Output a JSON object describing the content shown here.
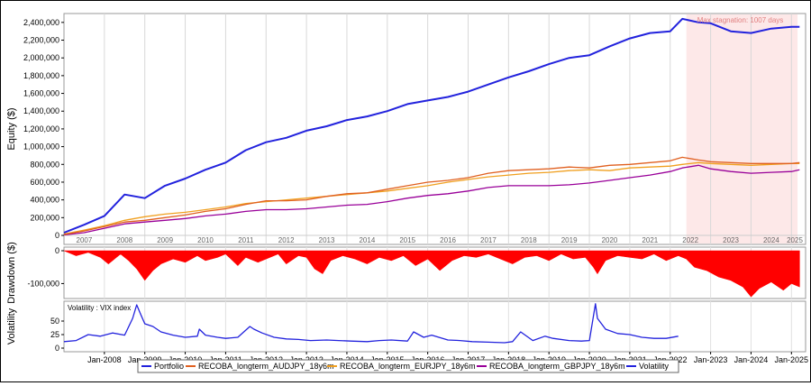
{
  "chart_data": [
    {
      "type": "line",
      "name": "equity",
      "ylabel": "Equity ($)",
      "ylim": [
        0,
        2500000
      ],
      "yticks": [
        "0",
        "200,000",
        "400,000",
        "600,000",
        "800,000",
        "1,000,000",
        "1,200,000",
        "1,400,000",
        "1,600,000",
        "1,800,000",
        "2,000,000",
        "2,200,000",
        "2,400,000"
      ],
      "year_labels": [
        "2007",
        "2008",
        "2009",
        "2010",
        "2011",
        "2012",
        "2013",
        "2014",
        "2015",
        "2016",
        "2017",
        "2018",
        "2019",
        "2020",
        "2021",
        "2022",
        "2023",
        "2024",
        "2025"
      ],
      "stagnation_label": "Max stagnation: 1007 days",
      "stagnation_range": [
        2022.4,
        2025.15
      ],
      "x": [
        2007.0,
        2007.5,
        2008.0,
        2008.5,
        2009.0,
        2009.5,
        2010.0,
        2010.5,
        2011.0,
        2011.5,
        2012.0,
        2012.5,
        2013.0,
        2013.5,
        2014.0,
        2014.5,
        2015.0,
        2015.5,
        2016.0,
        2016.5,
        2017.0,
        2017.5,
        2018.0,
        2018.5,
        2019.0,
        2019.5,
        2020.0,
        2020.5,
        2021.0,
        2021.5,
        2022.0,
        2022.3,
        2022.7,
        2023.0,
        2023.5,
        2024.0,
        2024.5,
        2025.0,
        2025.2
      ],
      "series": [
        {
          "name": "Portfolio",
          "color": "#2222dd",
          "values": [
            30000,
            120000,
            220000,
            460000,
            420000,
            560000,
            640000,
            740000,
            820000,
            960000,
            1050000,
            1100000,
            1180000,
            1230000,
            1300000,
            1340000,
            1400000,
            1480000,
            1520000,
            1560000,
            1620000,
            1700000,
            1780000,
            1850000,
            1930000,
            2000000,
            2030000,
            2130000,
            2220000,
            2280000,
            2300000,
            2440000,
            2400000,
            2390000,
            2300000,
            2280000,
            2330000,
            2350000,
            2350000
          ]
        },
        {
          "name": "RECOBA_longterm_AUDJPY_18y6m",
          "color": "#e06020",
          "values": [
            10000,
            50000,
            100000,
            150000,
            170000,
            200000,
            230000,
            270000,
            300000,
            350000,
            390000,
            390000,
            400000,
            440000,
            470000,
            480000,
            520000,
            560000,
            600000,
            620000,
            650000,
            700000,
            730000,
            740000,
            750000,
            770000,
            760000,
            790000,
            800000,
            820000,
            840000,
            880000,
            850000,
            830000,
            820000,
            810000,
            810000,
            810000,
            820000
          ]
        },
        {
          "name": "RECOBA_longterm_EURJPY_18y6m",
          "color": "#f0a020",
          "values": [
            15000,
            60000,
            110000,
            170000,
            210000,
            240000,
            260000,
            290000,
            320000,
            360000,
            380000,
            400000,
            420000,
            440000,
            460000,
            480000,
            500000,
            530000,
            560000,
            600000,
            630000,
            660000,
            680000,
            700000,
            710000,
            730000,
            740000,
            730000,
            760000,
            770000,
            780000,
            800000,
            820000,
            810000,
            800000,
            790000,
            800000,
            810000,
            810000
          ]
        },
        {
          "name": "RECOBA_longterm_GBPJPY_18y6m",
          "color": "#990099",
          "values": [
            5000,
            30000,
            80000,
            130000,
            150000,
            170000,
            190000,
            220000,
            240000,
            270000,
            290000,
            290000,
            300000,
            320000,
            340000,
            350000,
            380000,
            420000,
            450000,
            470000,
            500000,
            540000,
            560000,
            560000,
            560000,
            570000,
            590000,
            620000,
            650000,
            680000,
            720000,
            760000,
            790000,
            750000,
            720000,
            700000,
            710000,
            720000,
            740000
          ]
        }
      ]
    },
    {
      "type": "area",
      "name": "drawdown",
      "ylabel": "Drawdown ($)",
      "yticks": [
        "0",
        "-100,000"
      ],
      "ylim": [
        -140000,
        0
      ],
      "color": "#ff0000",
      "x": [
        2007.0,
        2007.3,
        2007.6,
        2007.9,
        2008.1,
        2008.4,
        2008.6,
        2008.8,
        2009.0,
        2009.2,
        2009.4,
        2009.7,
        2010.0,
        2010.3,
        2010.5,
        2010.8,
        2011.0,
        2011.3,
        2011.5,
        2011.8,
        2012.0,
        2012.3,
        2012.5,
        2012.8,
        2013.0,
        2013.2,
        2013.4,
        2013.6,
        2013.9,
        2014.2,
        2014.5,
        2014.8,
        2015.1,
        2015.4,
        2015.7,
        2016.0,
        2016.3,
        2016.6,
        2016.9,
        2017.2,
        2017.5,
        2017.8,
        2018.1,
        2018.4,
        2018.7,
        2019.0,
        2019.3,
        2019.6,
        2019.9,
        2020.1,
        2020.2,
        2020.4,
        2020.7,
        2021.0,
        2021.3,
        2021.6,
        2021.9,
        2022.2,
        2022.4,
        2022.6,
        2022.9,
        2023.2,
        2023.5,
        2023.8,
        2024.0,
        2024.2,
        2024.5,
        2024.8,
        2025.0,
        2025.2
      ],
      "values": [
        0,
        -15000,
        -5000,
        -20000,
        -40000,
        -10000,
        -30000,
        -55000,
        -90000,
        -60000,
        -40000,
        -25000,
        -35000,
        -15000,
        -30000,
        -20000,
        -10000,
        -45000,
        -20000,
        -35000,
        -25000,
        -10000,
        -40000,
        -15000,
        -20000,
        -55000,
        -70000,
        -30000,
        -15000,
        -25000,
        -40000,
        -20000,
        -30000,
        -15000,
        -45000,
        -25000,
        -60000,
        -30000,
        -15000,
        -20000,
        -10000,
        -25000,
        -40000,
        -20000,
        -15000,
        -30000,
        -10000,
        -25000,
        -20000,
        -50000,
        -70000,
        -30000,
        -15000,
        -20000,
        -25000,
        -10000,
        -30000,
        -15000,
        -25000,
        -50000,
        -60000,
        -80000,
        -90000,
        -110000,
        -140000,
        -115000,
        -95000,
        -120000,
        -100000,
        -110000
      ]
    },
    {
      "type": "line",
      "name": "volatility",
      "ylabel": "Volatility",
      "title": "Volatility : VIX index",
      "yticks": [
        "0",
        "25",
        "50"
      ],
      "ylim": [
        0,
        80
      ],
      "color": "#2222dd",
      "x": [
        2007.0,
        2007.3,
        2007.6,
        2007.9,
        2008.2,
        2008.5,
        2008.7,
        2008.8,
        2008.9,
        2009.0,
        2009.2,
        2009.4,
        2009.7,
        2010.0,
        2010.3,
        2010.35,
        2010.5,
        2010.8,
        2011.0,
        2011.3,
        2011.6,
        2011.7,
        2011.9,
        2012.2,
        2012.5,
        2012.8,
        2013.1,
        2013.5,
        2013.8,
        2014.1,
        2014.5,
        2014.8,
        2015.1,
        2015.5,
        2015.65,
        2015.9,
        2016.1,
        2016.5,
        2016.8,
        2017.1,
        2017.5,
        2017.9,
        2018.1,
        2018.3,
        2018.6,
        2018.9,
        2019.1,
        2019.5,
        2019.8,
        2020.0,
        2020.15,
        2020.2,
        2020.4,
        2020.7,
        2021.0,
        2021.3,
        2021.6,
        2021.9,
        2022.2
      ],
      "values": [
        12,
        14,
        25,
        22,
        28,
        24,
        55,
        80,
        62,
        45,
        40,
        30,
        24,
        20,
        22,
        35,
        24,
        20,
        18,
        20,
        40,
        35,
        28,
        20,
        17,
        16,
        14,
        15,
        14,
        13,
        12,
        14,
        15,
        13,
        30,
        20,
        24,
        15,
        14,
        12,
        11,
        10,
        12,
        30,
        14,
        22,
        18,
        14,
        13,
        14,
        82,
        55,
        35,
        27,
        25,
        20,
        18,
        18,
        22
      ]
    }
  ],
  "legend": [
    {
      "name": "Portfolio",
      "color": "#2222dd"
    },
    {
      "name": "RECOBA_longterm_AUDJPY_18y6m",
      "color": "#e06020"
    },
    {
      "name": "RECOBA_longterm_EURJPY_18y6m",
      "color": "#f0a020"
    },
    {
      "name": "RECOBA_longterm_GBPJPY_18y6m",
      "color": "#990099"
    },
    {
      "name": "Volatility",
      "color": "#2222dd"
    }
  ],
  "xaxis_labels": [
    "Jan-2008",
    "Jan-2009",
    "Jan-2010",
    "Jan-2011",
    "Jan-2012",
    "Jan-2013",
    "Jan-2014",
    "Jan-2015",
    "Jan-2016",
    "Jan-2017",
    "Jan-2018",
    "Jan-2019",
    "Jan-2020",
    "Jan-2021",
    "Jan-2022",
    "Jan-2023",
    "Jan-2024",
    "Jan-2025"
  ],
  "xaxis_values": [
    2008,
    2009,
    2010,
    2011,
    2012,
    2013,
    2014,
    2015,
    2016,
    2017,
    2018,
    2019,
    2020,
    2021,
    2022,
    2023,
    2024,
    2025
  ]
}
